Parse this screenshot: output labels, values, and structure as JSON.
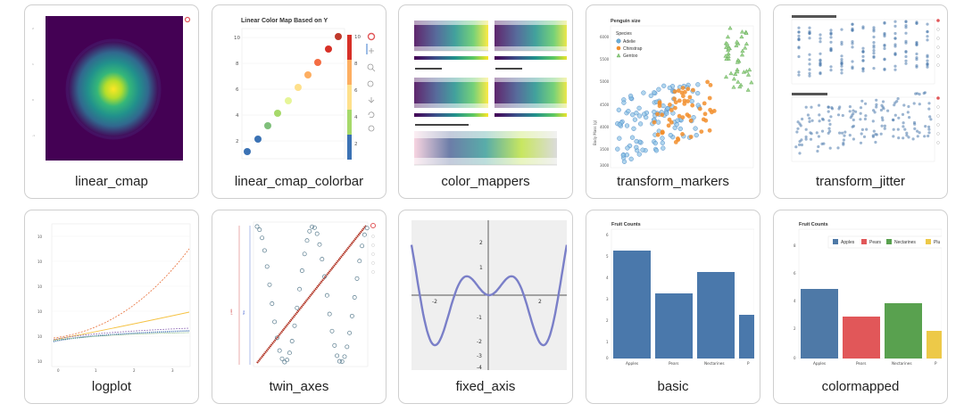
{
  "gallery": {
    "items": [
      {
        "name": "linear_cmap"
      },
      {
        "name": "linear_cmap_colorbar"
      },
      {
        "name": "color_mappers"
      },
      {
        "name": "transform_markers"
      },
      {
        "name": "transform_jitter"
      },
      {
        "name": "logplot"
      },
      {
        "name": "twin_axes"
      },
      {
        "name": "fixed_axis"
      },
      {
        "name": "basic"
      },
      {
        "name": "colormapped"
      }
    ]
  },
  "thumbs": {
    "linear_cmap_colorbar": {
      "title": "Linear Color Map Based on Y",
      "yticks": [
        "10",
        "8",
        "6",
        "4",
        "2"
      ],
      "cbticks": [
        "10",
        "8",
        "6",
        "4",
        "2"
      ]
    },
    "transform_markers": {
      "title": "Penguin size",
      "legend_title": "Species",
      "legend": [
        "Adelie",
        "Chinstrap",
        "Gentoo"
      ],
      "ylabel": "Body Mass (g)",
      "yticks": [
        "6000",
        "5500",
        "5000",
        "4500",
        "4000",
        "3500",
        "3000"
      ]
    },
    "fixed_axis": {
      "yticks": [
        "2",
        "1",
        "-1",
        "-2",
        "-3",
        "-4"
      ],
      "xticks": [
        "-2",
        "2"
      ]
    },
    "basic": {
      "title": "Fruit Counts",
      "categories": [
        "Apples",
        "Pears",
        "Nectarines",
        "P"
      ],
      "yticks": [
        "6",
        "5",
        "4",
        "3",
        "2",
        "1",
        "0"
      ]
    },
    "colormapped": {
      "title": "Fruit Counts",
      "legend": [
        "Apples",
        "Pears",
        "Nectarines",
        "Plu"
      ],
      "categories": [
        "Apples",
        "Pears",
        "Nectarines",
        "P"
      ],
      "yticks": [
        "8",
        "6",
        "4",
        "2",
        "0"
      ]
    }
  },
  "colors": {
    "bokeh_blue": "#4a78ab",
    "apples": "#4e79a7",
    "pears": "#e15759",
    "nectarines": "#59a14f",
    "plums": "#edc948",
    "adelie": "#6baed6",
    "chinstrap": "#f28e2b",
    "gentoo": "#59a14f"
  }
}
